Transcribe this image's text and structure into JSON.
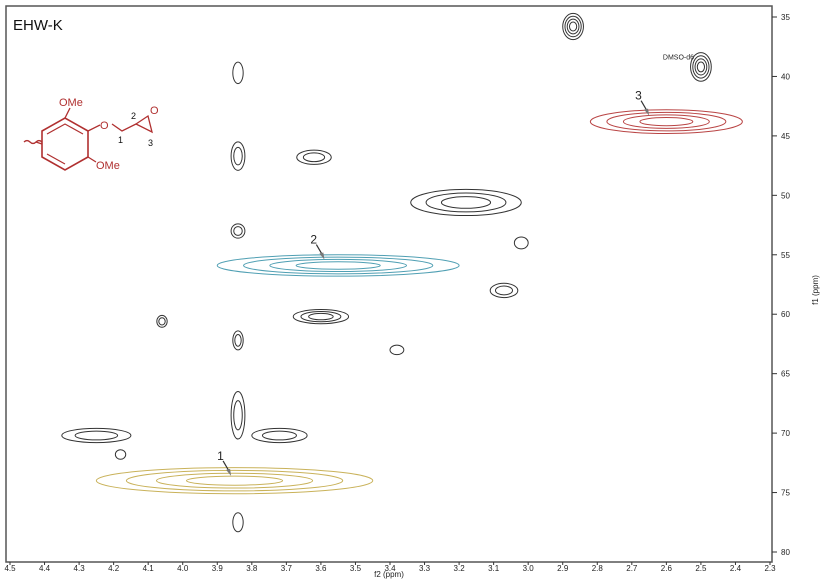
{
  "chart_data": {
    "type": "heatmap",
    "title": "EHW-K",
    "xlabel": "f2 (ppm)",
    "ylabel": "f1 (ppm)",
    "xlim": [
      4.5,
      2.3
    ],
    "ylim": [
      35,
      80
    ],
    "x_ticks": [
      "4.5",
      "4.4",
      "4.3",
      "4.2",
      "4.1",
      "4.0",
      "3.9",
      "3.8",
      "3.7",
      "3.6",
      "3.5",
      "3.4",
      "3.3",
      "3.2",
      "3.1",
      "3.0",
      "2.9",
      "2.8",
      "2.7",
      "2.6",
      "2.5",
      "2.4",
      "2.3"
    ],
    "y_ticks": [
      "35",
      "40",
      "45",
      "50",
      "55",
      "60",
      "65",
      "70",
      "75",
      "80"
    ],
    "colors": {
      "black": "#333333",
      "red": "#b94444",
      "blue": "#4f9fb3",
      "yellow": "#c9b25a"
    },
    "peaks": [
      {
        "x": 2.87,
        "y": 35.8,
        "rx": 0.03,
        "ry": 1.1,
        "levels": 4,
        "color": "black"
      },
      {
        "x": 2.5,
        "y": 39.2,
        "rx": 0.03,
        "ry": 1.2,
        "levels": 4,
        "color": "black"
      },
      {
        "x": 2.6,
        "y": 43.8,
        "rx": 0.22,
        "ry": 1.0,
        "levels": 4,
        "color": "red"
      },
      {
        "x": 3.84,
        "y": 39.7,
        "rx": 0.015,
        "ry": 0.9,
        "levels": 1,
        "color": "black"
      },
      {
        "x": 3.84,
        "y": 46.7,
        "rx": 0.02,
        "ry": 1.2,
        "levels": 2,
        "color": "black"
      },
      {
        "x": 3.62,
        "y": 46.8,
        "rx": 0.05,
        "ry": 0.6,
        "levels": 2,
        "color": "black"
      },
      {
        "x": 3.18,
        "y": 50.6,
        "rx": 0.16,
        "ry": 1.1,
        "levels": 3,
        "color": "black"
      },
      {
        "x": 3.84,
        "y": 53.0,
        "rx": 0.02,
        "ry": 0.6,
        "levels": 2,
        "color": "black"
      },
      {
        "x": 3.02,
        "y": 54.0,
        "rx": 0.02,
        "ry": 0.5,
        "levels": 1,
        "color": "black"
      },
      {
        "x": 3.55,
        "y": 55.9,
        "rx": 0.35,
        "ry": 0.9,
        "levels": 4,
        "color": "blue"
      },
      {
        "x": 3.07,
        "y": 58.0,
        "rx": 0.04,
        "ry": 0.6,
        "levels": 2,
        "color": "black"
      },
      {
        "x": 3.6,
        "y": 60.2,
        "rx": 0.08,
        "ry": 0.6,
        "levels": 3,
        "color": "black"
      },
      {
        "x": 4.06,
        "y": 60.6,
        "rx": 0.015,
        "ry": 0.5,
        "levels": 2,
        "color": "black"
      },
      {
        "x": 3.84,
        "y": 62.2,
        "rx": 0.015,
        "ry": 0.8,
        "levels": 2,
        "color": "black"
      },
      {
        "x": 3.38,
        "y": 63.0,
        "rx": 0.02,
        "ry": 0.4,
        "levels": 1,
        "color": "black"
      },
      {
        "x": 3.84,
        "y": 68.5,
        "rx": 0.02,
        "ry": 2.0,
        "levels": 2,
        "color": "black"
      },
      {
        "x": 4.25,
        "y": 70.2,
        "rx": 0.1,
        "ry": 0.6,
        "levels": 2,
        "color": "black"
      },
      {
        "x": 3.72,
        "y": 70.2,
        "rx": 0.08,
        "ry": 0.6,
        "levels": 2,
        "color": "black"
      },
      {
        "x": 4.18,
        "y": 71.8,
        "rx": 0.015,
        "ry": 0.4,
        "levels": 1,
        "color": "black"
      },
      {
        "x": 3.85,
        "y": 74.0,
        "rx": 0.4,
        "ry": 1.1,
        "levels": 4,
        "color": "yellow"
      },
      {
        "x": 3.84,
        "y": 77.5,
        "rx": 0.015,
        "ry": 0.8,
        "levels": 1,
        "color": "black"
      }
    ],
    "annotations": [
      {
        "label": "1",
        "x": 3.86,
        "y": 73.6
      },
      {
        "label": "2",
        "x": 3.59,
        "y": 55.4
      },
      {
        "label": "3",
        "x": 2.65,
        "y": 43.3
      },
      {
        "label": "DMSO-d6",
        "x": 2.5,
        "y": 39.4
      }
    ]
  },
  "structure": {
    "labels": {
      "ome_top": "OMe",
      "ome_bottom": "OMe",
      "oxygen": "O",
      "epoxide_oxygen": "O",
      "c1": "1",
      "c2": "2",
      "c3": "3"
    }
  }
}
